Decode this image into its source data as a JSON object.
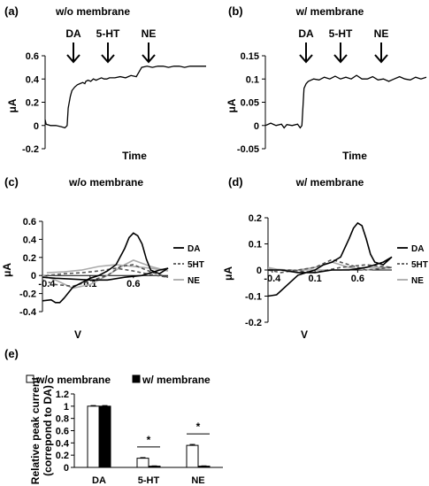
{
  "chart_data": [
    {
      "panel": "(a)",
      "title": "w/o membrane",
      "type": "line",
      "xlabel": "Time",
      "ylabel": "μA",
      "ylim": [
        -0.2,
        0.6
      ],
      "yticks": [
        "-0.2",
        "0",
        "0.2",
        "0.4",
        "0.6"
      ],
      "events": [
        "DA",
        "5-HT",
        "NE"
      ],
      "x": [
        0,
        0.02,
        0.1,
        0.2,
        0.3,
        0.37,
        0.41,
        0.43,
        0.47,
        0.5,
        0.55,
        0.6,
        0.65,
        0.7,
        0.74,
        0.76,
        0.8,
        0.85,
        0.9,
        0.95,
        1.0,
        1.05,
        1.1,
        1.15,
        1.2,
        1.3,
        1.4,
        1.5,
        1.6,
        1.7,
        1.8,
        1.9,
        2.0,
        2.1,
        2.2,
        2.3,
        2.4,
        2.5,
        2.6,
        2.7,
        2.8,
        2.9,
        3.0
      ],
      "y": [
        0.05,
        0.01,
        0.0,
        0.0,
        -0.01,
        -0.02,
        0.0,
        0.15,
        0.25,
        0.3,
        0.33,
        0.35,
        0.36,
        0.37,
        0.36,
        0.38,
        0.39,
        0.38,
        0.4,
        0.39,
        0.4,
        0.41,
        0.4,
        0.4,
        0.41,
        0.41,
        0.42,
        0.41,
        0.43,
        0.42,
        0.5,
        0.51,
        0.5,
        0.51,
        0.51,
        0.5,
        0.51,
        0.51,
        0.5,
        0.51,
        0.51,
        0.51,
        0.51
      ]
    },
    {
      "panel": "(b)",
      "title": "w/ membrane",
      "type": "line",
      "xlabel": "Time",
      "ylabel": "μA",
      "ylim": [
        -0.05,
        0.15
      ],
      "yticks": [
        "-0.05",
        "0",
        "0.05",
        "0.1",
        "0.15"
      ],
      "events": [
        "DA",
        "5-HT",
        "NE"
      ],
      "x": [
        0,
        0.1,
        0.2,
        0.3,
        0.35,
        0.4,
        0.5,
        0.6,
        0.65,
        0.68,
        0.7,
        0.72,
        0.76,
        0.8,
        0.9,
        1.0,
        1.1,
        1.2,
        1.3,
        1.4,
        1.5,
        1.6,
        1.7,
        1.8,
        1.9,
        2.0,
        2.1,
        2.2,
        2.3,
        2.4,
        2.5,
        2.6,
        2.7,
        2.8,
        2.9,
        3.0
      ],
      "y": [
        0.0,
        0.005,
        0.0,
        0.003,
        -0.005,
        0.002,
        0.0,
        0.003,
        -0.005,
        0.0,
        0.04,
        0.08,
        0.09,
        0.095,
        0.1,
        0.098,
        0.104,
        0.1,
        0.106,
        0.1,
        0.104,
        0.1,
        0.108,
        0.1,
        0.1,
        0.105,
        0.098,
        0.1,
        0.095,
        0.1,
        0.105,
        0.1,
        0.098,
        0.104,
        0.1,
        0.104
      ]
    },
    {
      "panel": "(c)",
      "title": "w/o membrane",
      "type": "line",
      "xlabel": "V",
      "ylabel": "μA",
      "ylim": [
        -0.4,
        0.6
      ],
      "xlim": [
        -0.45,
        1.0
      ],
      "yticks": [
        "-0.4",
        "-0.2",
        "0",
        "0.2",
        "0.4",
        "0.6"
      ],
      "xticks": [
        "-0.4",
        "0.1",
        "0.6"
      ],
      "series": [
        {
          "name": "DA",
          "color": "#000000",
          "dash": "solid",
          "x": [
            -0.45,
            -0.35,
            -0.3,
            -0.25,
            -0.2,
            -0.1,
            0.0,
            0.1,
            0.2,
            0.3,
            0.4,
            0.5,
            0.55,
            0.6,
            0.65,
            0.7,
            0.75,
            0.8,
            0.9,
            1.0,
            0.9,
            0.7,
            0.5,
            0.3,
            0.1,
            -0.1,
            -0.3,
            -0.45
          ],
          "y": [
            -0.28,
            -0.27,
            -0.3,
            -0.3,
            -0.25,
            -0.13,
            -0.08,
            -0.03,
            0.0,
            0.05,
            0.12,
            0.3,
            0.42,
            0.47,
            0.44,
            0.35,
            0.18,
            0.06,
            0.02,
            0.08,
            0.06,
            0.0,
            -0.02,
            -0.05,
            -0.05,
            -0.04,
            -0.03,
            -0.02
          ]
        },
        {
          "name": "5HT",
          "color": "#555555",
          "dash": "dashed",
          "x": [
            -0.45,
            -0.3,
            -0.1,
            0.1,
            0.3,
            0.45,
            0.6,
            0.8,
            1.0,
            0.8,
            0.6,
            0.4,
            0.2,
            0.0,
            -0.2,
            -0.4
          ],
          "y": [
            -0.05,
            -0.1,
            -0.12,
            -0.06,
            0.0,
            0.1,
            0.12,
            0.04,
            -0.02,
            0.01,
            0.05,
            0.08,
            0.05,
            0.03,
            0.02,
            0.0
          ]
        },
        {
          "name": "NE",
          "color": "#aaaaaa",
          "dash": "solid",
          "x": [
            -0.45,
            -0.3,
            -0.1,
            0.1,
            0.3,
            0.5,
            0.6,
            0.8,
            1.0,
            0.8,
            0.6,
            0.4,
            0.2,
            0.0,
            -0.2,
            -0.4
          ],
          "y": [
            0.0,
            -0.05,
            -0.14,
            -0.1,
            0.0,
            0.12,
            0.17,
            0.1,
            0.05,
            0.08,
            0.1,
            0.12,
            0.1,
            0.06,
            0.04,
            0.03
          ]
        }
      ]
    },
    {
      "panel": "(d)",
      "title": "w/ membrane",
      "type": "line",
      "xlabel": "V",
      "ylabel": "μA",
      "ylim": [
        -0.2,
        0.2
      ],
      "xlim": [
        -0.45,
        1.0
      ],
      "yticks": [
        "-0.2",
        "-0.1",
        "0",
        "0.1",
        "0.2"
      ],
      "xticks": [
        "-0.4",
        "0.1",
        "0.6"
      ],
      "series": [
        {
          "name": "DA",
          "color": "#000000",
          "dash": "solid",
          "x": [
            -0.45,
            -0.35,
            -0.3,
            -0.2,
            -0.1,
            0.0,
            0.1,
            0.2,
            0.3,
            0.4,
            0.5,
            0.55,
            0.6,
            0.65,
            0.7,
            0.75,
            0.8,
            0.9,
            1.0,
            0.9,
            0.7,
            0.5,
            0.3,
            0.1,
            -0.1,
            -0.3,
            -0.45
          ],
          "y": [
            -0.1,
            -0.095,
            -0.08,
            -0.05,
            -0.02,
            -0.01,
            0.0,
            0.02,
            0.03,
            0.05,
            0.12,
            0.16,
            0.18,
            0.17,
            0.12,
            0.06,
            0.03,
            0.02,
            0.05,
            0.03,
            0.01,
            0.0,
            0.0,
            -0.01,
            -0.01,
            0.0,
            0.0
          ]
        },
        {
          "name": "5HT",
          "color": "#555555",
          "dash": "dashed",
          "x": [
            -0.45,
            -0.3,
            -0.1,
            0.1,
            0.3,
            0.5,
            0.7,
            1.0,
            0.7,
            0.4,
            0.1,
            -0.2,
            -0.45
          ],
          "y": [
            0.0,
            -0.01,
            0.0,
            0.01,
            0.04,
            0.02,
            0.0,
            0.01,
            0.02,
            0.01,
            -0.01,
            0.0,
            0.0
          ]
        },
        {
          "name": "NE",
          "color": "#aaaaaa",
          "dash": "solid",
          "x": [
            -0.45,
            -0.3,
            -0.1,
            0.1,
            0.3,
            0.5,
            0.7,
            1.0,
            0.7,
            0.4,
            0.1,
            -0.2,
            -0.45
          ],
          "y": [
            0.01,
            0.0,
            0.0,
            0.01,
            0.03,
            0.01,
            0.0,
            0.01,
            0.01,
            0.0,
            0.0,
            0.0,
            0.005
          ]
        }
      ]
    },
    {
      "panel": "(e)",
      "type": "bar",
      "ylabel": "Relative peak current (correpond to DA)",
      "ylim": [
        0,
        1.2
      ],
      "yticks": [
        "0",
        "0.2",
        "0.4",
        "0.6",
        "0.8",
        "1",
        "1.2"
      ],
      "categories": [
        "DA",
        "5-HT",
        "NE"
      ],
      "series": [
        {
          "name": "w/o membrane",
          "color": "#ffffff",
          "values": [
            1.0,
            0.15,
            0.36
          ],
          "errors": [
            0.01,
            0.01,
            0.015
          ]
        },
        {
          "name": "w/ membrane",
          "color": "#000000",
          "values": [
            1.0,
            0.02,
            0.02
          ],
          "errors": [
            0.01,
            0.005,
            0.005
          ]
        }
      ],
      "significance": [
        "",
        "*",
        "*"
      ]
    }
  ]
}
